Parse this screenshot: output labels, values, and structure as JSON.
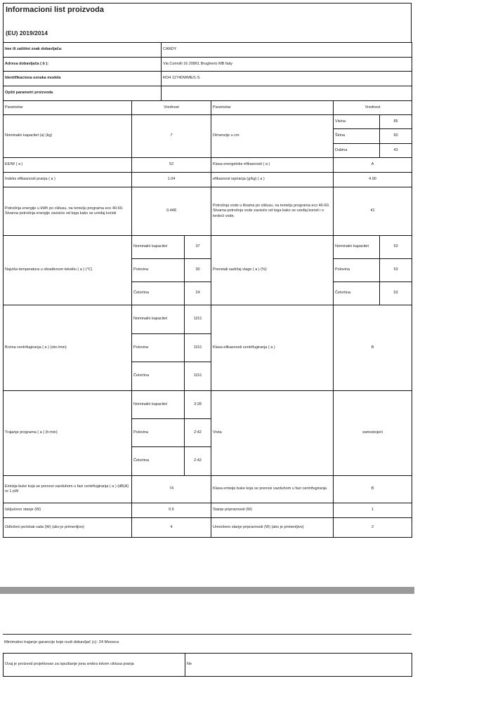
{
  "title": "Informacioni list proizvoda",
  "regulation": "(EU) 2019/2014",
  "supplier": [
    {
      "label": "Ime ili zaštitni znak dobavljača:",
      "value": "CANDY"
    },
    {
      "label": "Adresa dobavljača ( b ):",
      "value": "Via Comolli 16 20861 Brugherio MB Italy"
    },
    {
      "label": "Identifikaciona oznaka modela",
      "value": "RO4 1274DWME/1-S"
    },
    {
      "label": "Opšti parametri proizvoda",
      "value": ""
    }
  ],
  "header": {
    "param": "Parametar",
    "value": "Vrednost"
  },
  "dimensions": {
    "label": "Dimenzije u cm",
    "items": [
      {
        "label": "Visina",
        "value": "85"
      },
      {
        "label": "Širina",
        "value": "60"
      },
      {
        "label": "Dubina",
        "value": "43"
      }
    ]
  },
  "capacity": {
    "label": "Nominalni kapacitet (a) (kg)",
    "value": "7"
  },
  "eeiw": {
    "label": "EEIW ( a )",
    "value": "52"
  },
  "energy_class": {
    "label": "Klasa energetske efikasnosti ( a )",
    "value": "A"
  },
  "wash_index": {
    "label": "Indeks efikasnosti pranja ( a )",
    "value": "1.04"
  },
  "rinse": {
    "label": "efikasnost ispiranja (g/kg) ( a )",
    "value": "4.90"
  },
  "energy": {
    "label": "Potrošnja energije u kWh po ciklusu, na temelju programa eco 40-60. Stvarna potrošnja energije zavisiće od toga kako se uređaj koristi",
    "value": "0.448"
  },
  "water": {
    "label": "Potrošnja vode u litrama po ciklusu, na temelju programa eco 40-60. Stvarna potrošnja vode zavisiće od toga kako se uređaj koristi i o tvrdoći vode.",
    "value": "41"
  },
  "temperature": {
    "label": "Najviša temperatura u obrađenom tekstilu ( a ) (°C)",
    "items": [
      {
        "label": "Nominalni kapacitet",
        "value": "37"
      },
      {
        "label": "Polovina",
        "value": "30"
      },
      {
        "label": "Četvrtina",
        "value": "24"
      }
    ]
  },
  "moisture": {
    "label": "Preostali sadržaj vlage ( a ) (%)",
    "items": [
      {
        "label": "Nominalni kapacitet",
        "value": "53"
      },
      {
        "label": "Polovina",
        "value": "53"
      },
      {
        "label": "Četvrtina",
        "value": "53"
      }
    ]
  },
  "spin": {
    "label": "Brzina centrifugiranja ( a ) (obr./min)",
    "items": [
      {
        "label": "Nominalni kapacitet",
        "value": "1151"
      },
      {
        "label": "Polovina",
        "value": "1151"
      },
      {
        "label": "Četvrtina",
        "value": "1151"
      }
    ]
  },
  "spin_class": {
    "label": "Klasa efikasnosti centrifugiranja ( a )",
    "value": "B"
  },
  "duration": {
    "label": "Trajanje programa ( a ) (h:min)",
    "items": [
      {
        "label": "Nominalni kapacitet",
        "value": "3:28"
      },
      {
        "label": "Polovina",
        "value": "2:42"
      },
      {
        "label": "Četvrtina",
        "value": "2:42"
      }
    ]
  },
  "type": {
    "label": "Vrsta",
    "value": "samostojeći"
  },
  "noise": {
    "label": "Emisija buke koja se prenosi vazduhom u fazi centrifugiranja ( a ) (dB(A) re 1 pW",
    "value": "74"
  },
  "noise_class": {
    "label": "Klasa emisije buke koja se prenosi vazduhom u fazi centrifugiranja",
    "value": "B"
  },
  "off": {
    "label": "Isključeno stanje (W)",
    "value": "0.5"
  },
  "standby": {
    "label": "Stanje pripravnosti (W)",
    "value": "1"
  },
  "delay": {
    "label": "Odloženi početak rada (W) (ako je primenljivo)",
    "value": "4"
  },
  "network_standby": {
    "label": "Umreženo stanje pripravnosti (W) (ako je primenljivo)",
    "value": "2"
  },
  "warranty": "Minimalno trajanje garancije koje nudi dobavljač (c): 24 Meseca",
  "silver": {
    "label": "Ovaj je proizvod projektovan za ispuštanje jona srebra tokom ciklusa pranja",
    "value": "Ne"
  }
}
